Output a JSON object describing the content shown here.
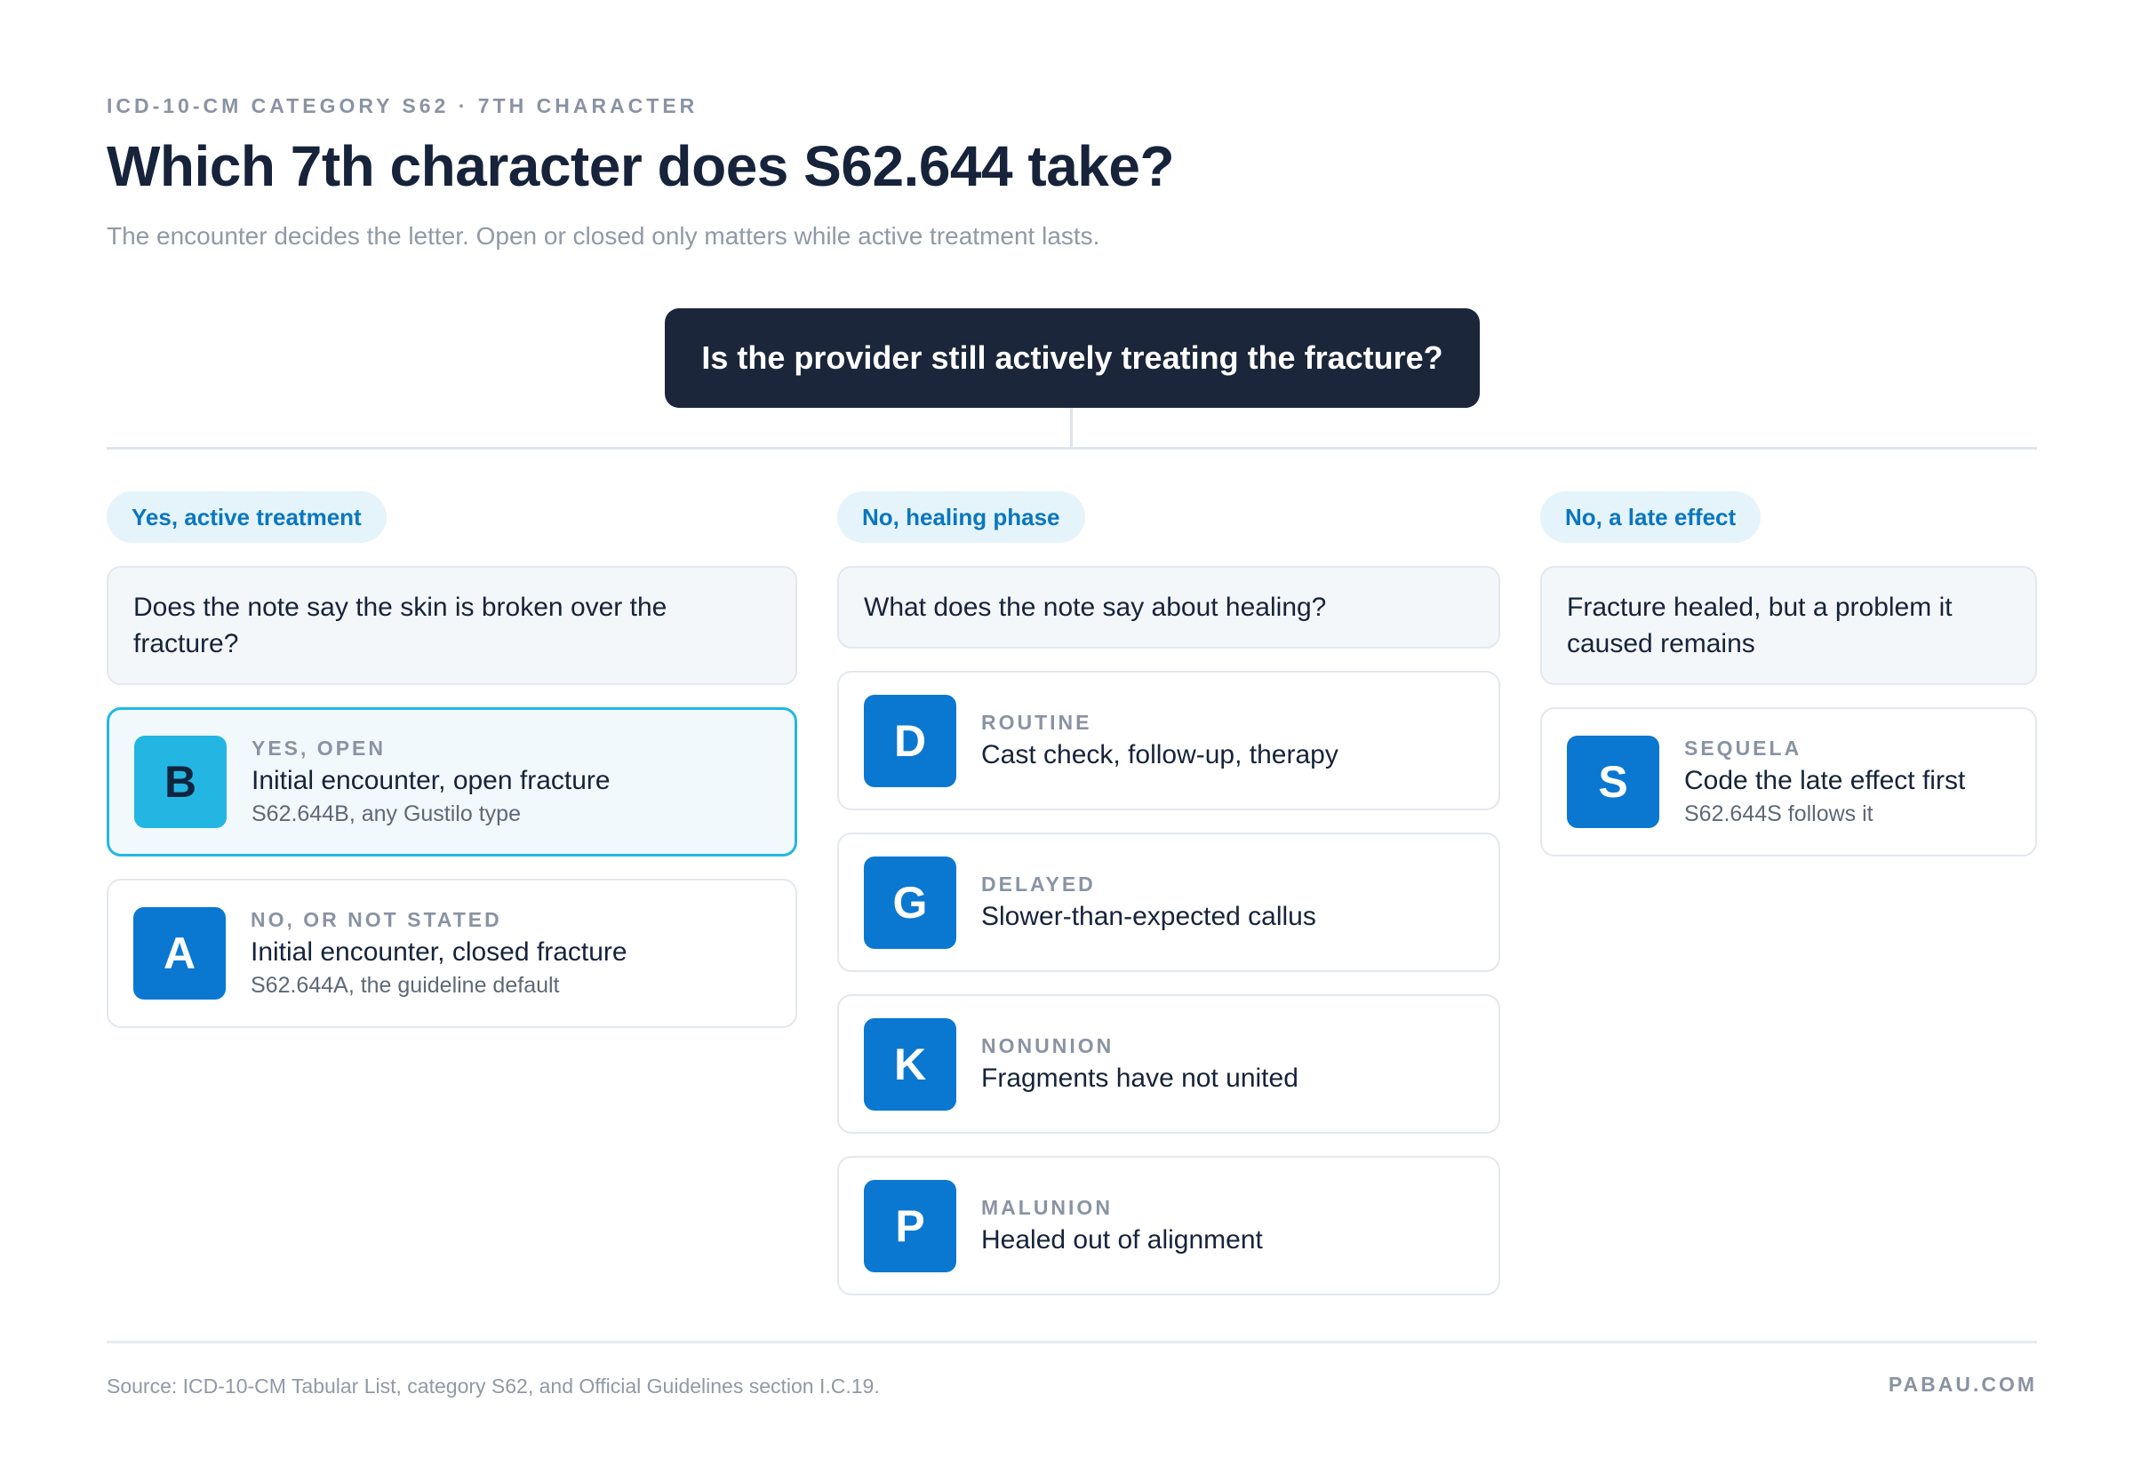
{
  "header": {
    "eyebrow": "ICD-10-CM CATEGORY S62 · 7TH CHARACTER",
    "title": "Which 7th character does S62.644 take?",
    "subtitle": "The encounter decides the letter. Open or closed only matters while active treatment lasts."
  },
  "root_question": "Is the provider still actively treating the fracture?",
  "columns": [
    {
      "branch": "Yes, active treatment",
      "question": "Does the note say the skin is broken over the fracture?",
      "options": [
        {
          "letter": "B",
          "label": "YES, OPEN",
          "desc": "Initial encounter, open fracture",
          "code": "S62.644B, any Gustilo type",
          "selected": true
        },
        {
          "letter": "A",
          "label": "NO, OR NOT STATED",
          "desc": "Initial encounter, closed fracture",
          "code": "S62.644A, the guideline default"
        }
      ]
    },
    {
      "branch": "No, healing phase",
      "question": "What does the note say about healing?",
      "options": [
        {
          "letter": "D",
          "label": "ROUTINE",
          "desc": "Cast check, follow-up, therapy"
        },
        {
          "letter": "G",
          "label": "DELAYED",
          "desc": "Slower-than-expected callus"
        },
        {
          "letter": "K",
          "label": "NONUNION",
          "desc": "Fragments have not united"
        },
        {
          "letter": "P",
          "label": "MALUNION",
          "desc": "Healed out of alignment"
        }
      ]
    },
    {
      "branch": "No, a late effect",
      "question": "Fracture healed, but a problem it caused remains",
      "options": [
        {
          "letter": "S",
          "label": "SEQUELA",
          "desc": "Code the late effect first",
          "code": "S62.644S follows it"
        }
      ]
    }
  ],
  "footer": {
    "source": "Source: ICD-10-CM Tabular List, category S62, and Official Guidelines section I.C.19.",
    "brand": "PABAU.COM"
  },
  "colors": {
    "dark": "#1c263a",
    "accent": "#0a78d1",
    "selected_accent": "#24b6e2",
    "pill_bg": "#e4f4fa",
    "pill_text": "#0b76bf"
  }
}
